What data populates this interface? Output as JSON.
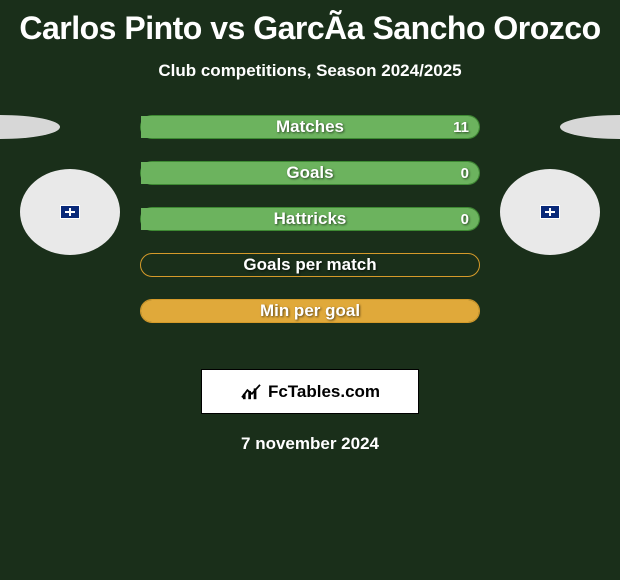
{
  "title": "Carlos Pinto vs GarcÃ­a Sancho Orozco",
  "subtitle": "Club competitions, Season 2024/2025",
  "date": "7 november 2024",
  "brand": "FcTables.com",
  "colors": {
    "background": "#1a2f1a",
    "ellipse_left": "#d7d7d7",
    "ellipse_right": "#d7d7d7",
    "avatar_left": "#e9e9e9",
    "avatar_right": "#e9e9e9",
    "bar_fill": "#6cb35e",
    "bar_border_green": "#3e8a33",
    "bar_border_orange": "#d59a2a",
    "bar_fill_orange": "#e0a93a",
    "label_text": "#ffffff"
  },
  "bars": [
    {
      "label": "Matches",
      "left": "",
      "right": "11",
      "fill_left_pct": 0,
      "fill_right_pct": 100,
      "style": "green"
    },
    {
      "label": "Goals",
      "left": "",
      "right": "0",
      "fill_left_pct": 0,
      "fill_right_pct": 100,
      "style": "green"
    },
    {
      "label": "Hattricks",
      "left": "",
      "right": "0",
      "fill_left_pct": 0,
      "fill_right_pct": 100,
      "style": "green"
    },
    {
      "label": "Goals per match",
      "left": "",
      "right": "",
      "fill_left_pct": 0,
      "fill_right_pct": 0,
      "style": "orange"
    },
    {
      "label": "Min per goal",
      "left": "",
      "right": "",
      "fill_left_pct": 50,
      "fill_right_pct": 50,
      "style": "orange"
    }
  ]
}
